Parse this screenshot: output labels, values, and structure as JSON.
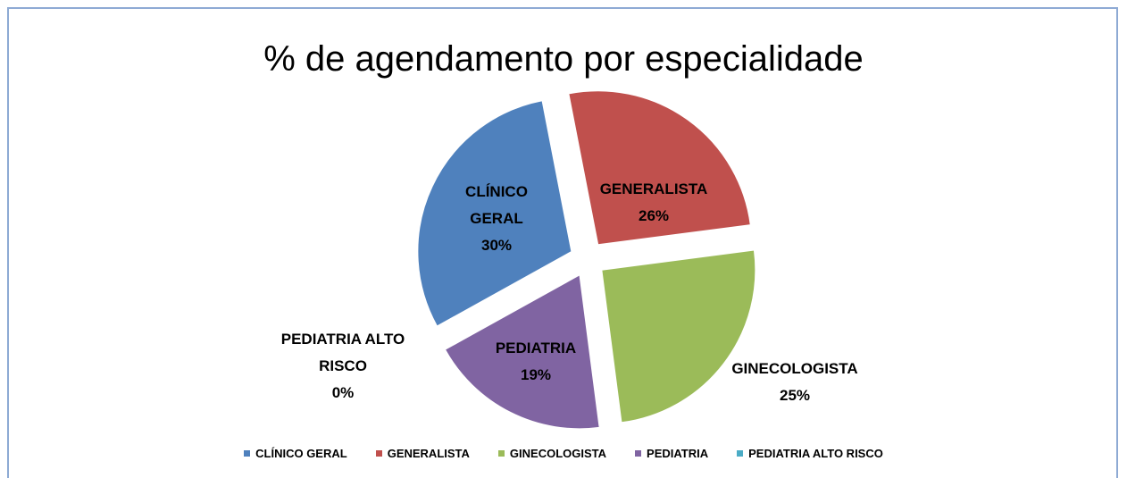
{
  "chart_data": {
    "type": "pie",
    "title": "% de agendamento por especialidade",
    "categories": [
      "CLÍNICO GERAL",
      "GENERALISTA",
      "GINECOLOGISTA",
      "PEDIATRIA",
      "PEDIATRIA ALTO RISCO"
    ],
    "values": [
      30,
      26,
      25,
      19,
      0
    ],
    "value_labels": [
      "30%",
      "26%",
      "25%",
      "19%",
      "0%"
    ],
    "colors": [
      "#4f81bd",
      "#c0504d",
      "#9bbb59",
      "#8064a2",
      "#4bacc6"
    ],
    "legend": "bottom"
  }
}
